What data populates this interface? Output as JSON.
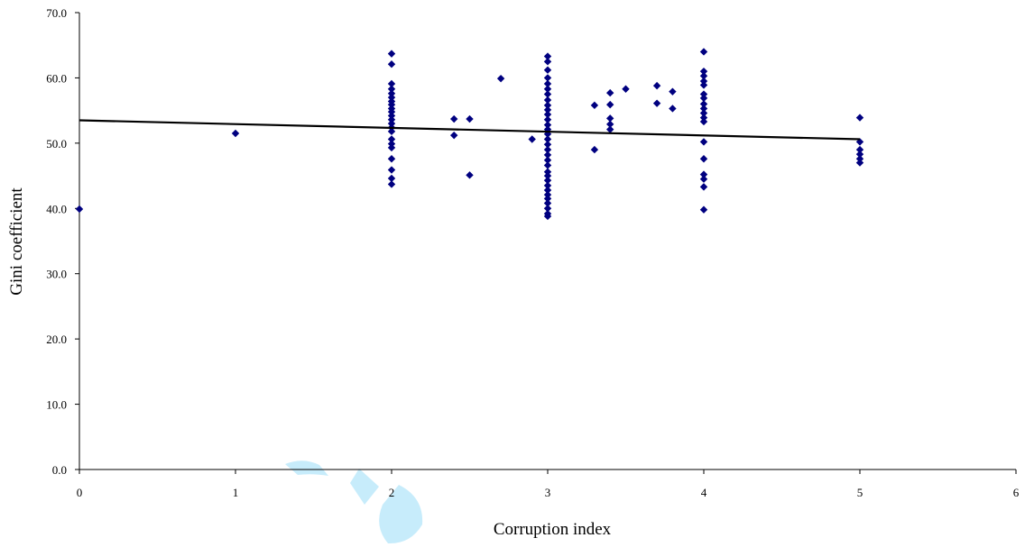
{
  "chart_data": {
    "type": "scatter",
    "xlabel": "Corruption  index",
    "ylabel": "Gini coefficient",
    "xlim": [
      0,
      6
    ],
    "ylim": [
      0,
      70
    ],
    "x_ticks": [
      0,
      1,
      2,
      3,
      4,
      5,
      6
    ],
    "y_ticks": [
      "0.0",
      "10.0",
      "20.0",
      "30.0",
      "40.0",
      "50.0",
      "60.0",
      "70.0"
    ],
    "grid": false,
    "legend": "none",
    "marker_color": "#000080",
    "trendline": {
      "x": [
        0,
        5
      ],
      "y": [
        53.5,
        50.6
      ],
      "color": "#000000"
    },
    "series": [
      {
        "points": [
          [
            0,
            39.9
          ],
          [
            1,
            51.5
          ],
          [
            2,
            63.7
          ],
          [
            2,
            62.1
          ],
          [
            2,
            59.1
          ],
          [
            2,
            58.3
          ],
          [
            2,
            57.6
          ],
          [
            2,
            57.0
          ],
          [
            2,
            56.4
          ],
          [
            2,
            55.9
          ],
          [
            2,
            55.3
          ],
          [
            2,
            54.8
          ],
          [
            2,
            54.2
          ],
          [
            2,
            53.6
          ],
          [
            2,
            53.0
          ],
          [
            2,
            52.4
          ],
          [
            2,
            51.8
          ],
          [
            2,
            50.6
          ],
          [
            2,
            49.9
          ],
          [
            2,
            49.3
          ],
          [
            2,
            47.6
          ],
          [
            2,
            45.9
          ],
          [
            2,
            44.6
          ],
          [
            2,
            43.7
          ],
          [
            2.4,
            53.7
          ],
          [
            2.4,
            51.2
          ],
          [
            2.5,
            53.7
          ],
          [
            2.5,
            45.1
          ],
          [
            2.7,
            59.9
          ],
          [
            2.9,
            50.6
          ],
          [
            3,
            63.3
          ],
          [
            3,
            62.5
          ],
          [
            3,
            61.2
          ],
          [
            3,
            60.0
          ],
          [
            3,
            59.1
          ],
          [
            3,
            58.3
          ],
          [
            3,
            57.5
          ],
          [
            3,
            56.6
          ],
          [
            3,
            55.8
          ],
          [
            3,
            55.1
          ],
          [
            3,
            54.4
          ],
          [
            3,
            53.6
          ],
          [
            3,
            52.8
          ],
          [
            3,
            52.1
          ],
          [
            3,
            51.4
          ],
          [
            3,
            50.6
          ],
          [
            3,
            49.8
          ],
          [
            3,
            49.0
          ],
          [
            3,
            48.2
          ],
          [
            3,
            47.4
          ],
          [
            3,
            46.6
          ],
          [
            3,
            45.6
          ],
          [
            3,
            45.0
          ],
          [
            3,
            44.3
          ],
          [
            3,
            43.5
          ],
          [
            3,
            42.8
          ],
          [
            3,
            42.1
          ],
          [
            3,
            41.5
          ],
          [
            3,
            40.8
          ],
          [
            3,
            40.0
          ],
          [
            3,
            39.2
          ],
          [
            3,
            38.8
          ],
          [
            3.3,
            55.8
          ],
          [
            3.3,
            49.0
          ],
          [
            3.4,
            57.7
          ],
          [
            3.4,
            55.9
          ],
          [
            3.4,
            53.8
          ],
          [
            3.4,
            52.9
          ],
          [
            3.4,
            52.1
          ],
          [
            3.5,
            58.3
          ],
          [
            3.7,
            58.8
          ],
          [
            3.7,
            56.1
          ],
          [
            3.8,
            57.9
          ],
          [
            3.8,
            55.3
          ],
          [
            4,
            64.0
          ],
          [
            4,
            61.0
          ],
          [
            4,
            60.3
          ],
          [
            4,
            59.5
          ],
          [
            4,
            58.9
          ],
          [
            4,
            57.5
          ],
          [
            4,
            56.9
          ],
          [
            4,
            56.0
          ],
          [
            4,
            55.3
          ],
          [
            4,
            54.6
          ],
          [
            4,
            53.9
          ],
          [
            4,
            53.3
          ],
          [
            4,
            50.2
          ],
          [
            4,
            47.6
          ],
          [
            4,
            45.2
          ],
          [
            4,
            44.5
          ],
          [
            4,
            43.3
          ],
          [
            4,
            39.8
          ],
          [
            5,
            53.9
          ],
          [
            5,
            50.2
          ],
          [
            5,
            49.0
          ],
          [
            5,
            48.3
          ],
          [
            5,
            47.6
          ],
          [
            5,
            47.0
          ]
        ]
      }
    ]
  }
}
